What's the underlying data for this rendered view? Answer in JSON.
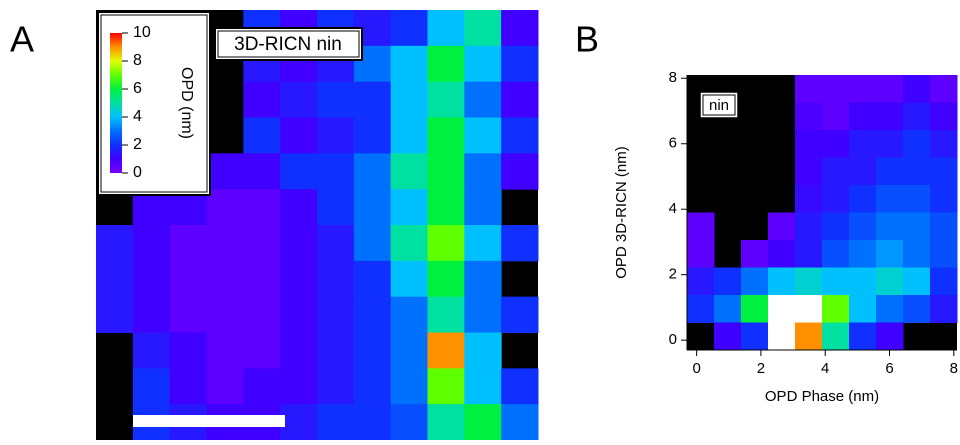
{
  "chart_data": [
    {
      "type": "heatmap",
      "panel": "A",
      "annotation": "3D-RICN nin",
      "colormap": [
        "#7a00ff",
        "#4000ff",
        "#1030ff",
        "#0070ff",
        "#00c0ff",
        "#00e0a0",
        "#00f040",
        "#60ff00",
        "#e0ff00",
        "#ff9000",
        "#ff0000"
      ],
      "over_color": "#ffffff",
      "zlim": [
        0,
        10
      ],
      "colorbar": {
        "label": "OPD (nm)",
        "lim": [
          0,
          10
        ],
        "ticks": [
          0,
          2,
          4,
          6,
          8,
          10
        ]
      },
      "z": [
        [
          null,
          null,
          null,
          null,
          2,
          1,
          2,
          1.5,
          2,
          4,
          5,
          1
        ],
        [
          null,
          null,
          null,
          null,
          1.5,
          1,
          1.5,
          3,
          4,
          6,
          4,
          2
        ],
        [
          null,
          null,
          null,
          null,
          1,
          1.5,
          2,
          2,
          4,
          5,
          3,
          1
        ],
        [
          null,
          null,
          null,
          null,
          2,
          1,
          1.5,
          2,
          4,
          6,
          4,
          2
        ],
        [
          null,
          null,
          null,
          1,
          1,
          2,
          2,
          3,
          5,
          6,
          3,
          1
        ],
        [
          null,
          1,
          1,
          0.5,
          0.5,
          1,
          2,
          3,
          4,
          6,
          3,
          null
        ],
        [
          1.5,
          1,
          0.5,
          0.5,
          0.5,
          1,
          1.5,
          3,
          5,
          7,
          4,
          2
        ],
        [
          1.5,
          1,
          0.5,
          0.5,
          0.5,
          1,
          1.5,
          2,
          4,
          6,
          3,
          null
        ],
        [
          1.5,
          1,
          0.5,
          0.5,
          0.5,
          1,
          1.5,
          2,
          3,
          5,
          3,
          2
        ],
        [
          null,
          1.5,
          1,
          0.5,
          0.5,
          1,
          1.5,
          2,
          3,
          9,
          4,
          null
        ],
        [
          null,
          2,
          1,
          0.5,
          1,
          1,
          1.5,
          2,
          3,
          7,
          4,
          2
        ],
        [
          null,
          2,
          1.5,
          1,
          1,
          1.5,
          2,
          2,
          2.5,
          5,
          6,
          3
        ]
      ]
    },
    {
      "type": "heatmap",
      "panel": "B",
      "annotation": "nin",
      "xlabel": "OPD Phase (nm)",
      "ylabel": "OPD 3D-RICN (nm)",
      "xlim": [
        -0.3,
        8.1
      ],
      "ylim": [
        -0.3,
        8.1
      ],
      "xticks": [
        0,
        2,
        4,
        6,
        8
      ],
      "yticks": [
        0,
        2,
        4,
        6,
        8
      ],
      "colormap": [
        "#7a00ff",
        "#4000ff",
        "#1030ff",
        "#0070ff",
        "#00c0ff",
        "#00e0a0",
        "#00f040",
        "#60ff00",
        "#e0ff00",
        "#ff9000",
        "#ff0000"
      ],
      "over_color": "#ffffff",
      "zlim": [
        0,
        10
      ],
      "z": [
        [
          null,
          null,
          null,
          null,
          0.5,
          0.5,
          0.5,
          0.5,
          1,
          0.5
        ],
        [
          null,
          null,
          null,
          null,
          0.8,
          0.5,
          1,
          1,
          1.5,
          1
        ],
        [
          null,
          null,
          null,
          null,
          1,
          1,
          1.5,
          1.5,
          2,
          1.5
        ],
        [
          null,
          null,
          null,
          null,
          1,
          1.5,
          1.5,
          2,
          2,
          2
        ],
        [
          null,
          null,
          null,
          null,
          1.2,
          1.5,
          2,
          2.5,
          2.5,
          2
        ],
        [
          0.5,
          null,
          null,
          0.5,
          1.5,
          2,
          2.5,
          3,
          3,
          2.5
        ],
        [
          0.5,
          null,
          0.5,
          1,
          1.5,
          2.5,
          3,
          3.5,
          3,
          2.5
        ],
        [
          1.5,
          2,
          3,
          4,
          4.5,
          4,
          4,
          4.5,
          4,
          2
        ],
        [
          2,
          3,
          6,
          12,
          11,
          7,
          4,
          3,
          2.5,
          1.5
        ],
        [
          null,
          1,
          2,
          11,
          9,
          5,
          2,
          1,
          null,
          null
        ]
      ]
    }
  ]
}
